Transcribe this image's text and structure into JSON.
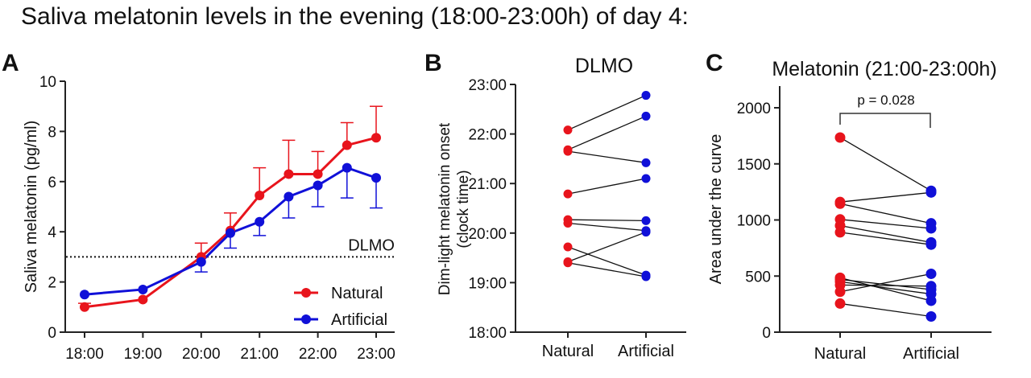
{
  "title": "Saliva melatonin levels in the evening (18:00-23:00h) of day 4:",
  "colors": {
    "natural": "#e8141c",
    "artificial": "#1010d8",
    "axis": "#222222",
    "pair_line": "#111111"
  },
  "chart_data": [
    {
      "panel": "A",
      "type": "line",
      "title": "",
      "xlabel": "",
      "ylabel": "Saliva melatonin (pg/ml)",
      "ylim": [
        0,
        10
      ],
      "yticks": [
        "0",
        "2",
        "4",
        "6",
        "8",
        "10"
      ],
      "xticks": [
        "18:00",
        "19:00",
        "20:00",
        "21:00",
        "22:00",
        "23:00"
      ],
      "x": [
        18,
        19,
        20,
        20.5,
        21,
        21.5,
        22,
        22.5,
        23
      ],
      "threshold": {
        "value": 3,
        "label": "DLMO"
      },
      "legend": "bottom-right",
      "series": [
        {
          "name": "Natural",
          "key": "natural",
          "values": [
            1.0,
            1.3,
            3.0,
            4.05,
            5.45,
            6.3,
            6.3,
            7.45,
            7.75
          ],
          "error_up": [
            1.15,
            1.3,
            3.55,
            4.75,
            6.55,
            7.65,
            7.2,
            8.35,
            9.0
          ]
        },
        {
          "name": "Artificial",
          "key": "artificial",
          "values": [
            1.5,
            1.7,
            2.8,
            3.95,
            4.4,
            5.4,
            5.85,
            6.55,
            6.15
          ],
          "error_down": [
            1.5,
            1.7,
            2.4,
            3.35,
            3.85,
            4.55,
            5.0,
            5.35,
            4.95
          ]
        }
      ]
    },
    {
      "panel": "B",
      "type": "scatter",
      "title": "DLMO",
      "ylabel": "Dim-light melatonin onset\n(clock time)",
      "ylabel_lines": [
        "Dim-light melatonin onset",
        "(clock time)"
      ],
      "ylim": [
        18,
        23
      ],
      "yticks": [
        "18:00",
        "19:00",
        "20:00",
        "21:00",
        "22:00",
        "23:00"
      ],
      "categories": [
        "Natural",
        "Artificial"
      ],
      "pairs": [
        [
          22.08,
          22.78
        ],
        [
          21.68,
          22.36
        ],
        [
          21.65,
          21.42
        ],
        [
          20.79,
          21.1
        ],
        [
          20.27,
          20.25
        ],
        [
          20.2,
          20.05
        ],
        [
          19.72,
          19.15
        ],
        [
          19.42,
          20.02
        ],
        [
          19.4,
          19.12
        ]
      ]
    },
    {
      "panel": "C",
      "type": "scatter",
      "title": "Melatonin (21:00-23:00h)",
      "ylabel": "Area under the curve",
      "ylim": [
        0,
        2200
      ],
      "yticks": [
        "0",
        "500",
        "1000",
        "1500",
        "2000"
      ],
      "categories": [
        "Natural",
        "Artificial"
      ],
      "annotation": "p = 0.028",
      "pairs": [
        [
          1735,
          1260
        ],
        [
          1160,
          1245
        ],
        [
          1145,
          970
        ],
        [
          1005,
          925
        ],
        [
          950,
          800
        ],
        [
          890,
          780
        ],
        [
          485,
          280
        ],
        [
          470,
          380
        ],
        [
          450,
          340
        ],
        [
          420,
          410
        ],
        [
          360,
          520
        ],
        [
          255,
          140
        ]
      ]
    }
  ]
}
